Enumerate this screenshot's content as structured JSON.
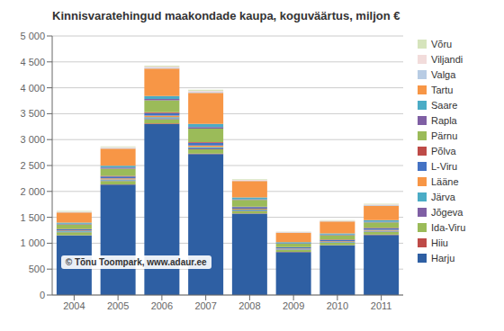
{
  "chart_data": {
    "type": "bar",
    "title": "Kinnisvaratehingud maakondade kaupa, koguväärtus, miljon €",
    "categories": [
      "2004",
      "2005",
      "2006",
      "2007",
      "2008",
      "2009",
      "2010",
      "2011"
    ],
    "series": [
      {
        "name": "Harju",
        "color": "#2E5FA3",
        "values": [
          1150,
          2130,
          3300,
          2720,
          1570,
          830,
          960,
          1160
        ]
      },
      {
        "name": "Hiiu",
        "color": "#BE4B48",
        "values": [
          5,
          7,
          10,
          12,
          6,
          4,
          5,
          6
        ]
      },
      {
        "name": "Ida-Viru",
        "color": "#9BBB59",
        "values": [
          55,
          65,
          85,
          80,
          48,
          38,
          42,
          52
        ]
      },
      {
        "name": "Jõgeva",
        "color": "#7F5FA4",
        "values": [
          10,
          13,
          17,
          18,
          10,
          7,
          8,
          10
        ]
      },
      {
        "name": "Järva",
        "color": "#4BACC6",
        "values": [
          13,
          18,
          23,
          25,
          14,
          9,
          11,
          14
        ]
      },
      {
        "name": "Lääne",
        "color": "#F79646",
        "values": [
          14,
          20,
          28,
          30,
          18,
          11,
          13,
          16
        ]
      },
      {
        "name": "L-Viru",
        "color": "#4472C4",
        "values": [
          22,
          35,
          50,
          52,
          30,
          20,
          24,
          30
        ]
      },
      {
        "name": "Põlva",
        "color": "#BE4B48",
        "values": [
          8,
          11,
          15,
          16,
          9,
          6,
          7,
          9
        ]
      },
      {
        "name": "Pärnu",
        "color": "#9BBB59",
        "values": [
          85,
          140,
          230,
          260,
          130,
          65,
          85,
          105
        ]
      },
      {
        "name": "Rapla",
        "color": "#7F5FA4",
        "values": [
          13,
          20,
          28,
          30,
          15,
          10,
          12,
          15
        ]
      },
      {
        "name": "Saare",
        "color": "#4BACC6",
        "values": [
          22,
          38,
          55,
          58,
          32,
          18,
          22,
          28
        ]
      },
      {
        "name": "Tartu",
        "color": "#F79646",
        "values": [
          195,
          330,
          530,
          600,
          320,
          185,
          230,
          280
        ]
      },
      {
        "name": "Valga",
        "color": "#B8CCE4",
        "values": [
          8,
          12,
          15,
          17,
          9,
          6,
          8,
          10
        ]
      },
      {
        "name": "Viljandi",
        "color": "#F2DCDB",
        "values": [
          12,
          17,
          22,
          24,
          13,
          9,
          11,
          14
        ]
      },
      {
        "name": "Võru",
        "color": "#D6E4BC",
        "values": [
          10,
          14,
          17,
          19,
          11,
          8,
          9,
          11
        ]
      }
    ],
    "ylim": [
      0,
      5000
    ],
    "yticks": [
      0,
      500,
      {
        "value": 1000,
        "label": "1 000"
      },
      {
        "value": 1500,
        "label": "1 500"
      },
      {
        "value": 2000,
        "label": "2 000"
      },
      {
        "value": 2500,
        "label": "2 500"
      },
      {
        "value": 3000,
        "label": "3 000"
      },
      {
        "value": 3500,
        "label": "3 500"
      },
      {
        "value": 4000,
        "label": "4 000"
      },
      {
        "value": 4500,
        "label": "4 500"
      },
      {
        "value": 5000,
        "label": "5 000"
      }
    ],
    "grid": true,
    "stacked": true,
    "legend": "right",
    "annotation": "© Tõnu Toompark, www.adaur.ee"
  }
}
